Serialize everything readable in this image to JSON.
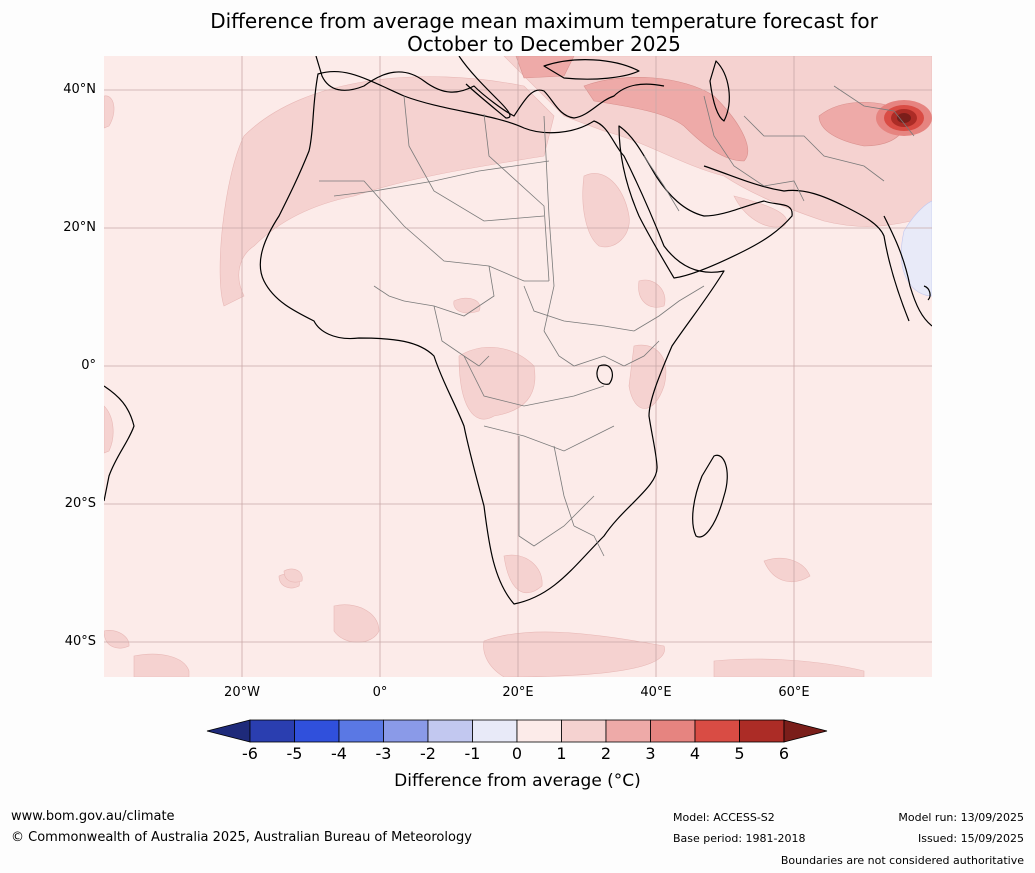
{
  "title_line1": "Difference from average mean maximum temperature forecast for",
  "title_line2": "October to December 2025",
  "lat_labels": [
    "40°N",
    "20°N",
    "0°",
    "20°S",
    "40°S"
  ],
  "lon_labels": [
    "20°W",
    "0°",
    "20°E",
    "40°E",
    "60°E"
  ],
  "colorbar": {
    "ticks": [
      "-6",
      "-5",
      "-4",
      "-3",
      "-2",
      "-1",
      "0",
      "1",
      "2",
      "3",
      "4",
      "5",
      "6"
    ],
    "colors": [
      "#1e2a7a",
      "#2a3eb0",
      "#3050dc",
      "#5a78e4",
      "#8a9ae8",
      "#c2c8f0",
      "#e8eaf8",
      "#fcebe9",
      "#f5d2d0",
      "#eeaaa8",
      "#e68480",
      "#d94c44",
      "#ac2c26",
      "#7a1e1a"
    ],
    "label": "Difference from average ($^\\circ$C)",
    "label_display": "Difference from average (°C)"
  },
  "footer": {
    "website": "www.bom.gov.au/climate",
    "copyright": "© Commonwealth of Australia 2025, Australian Bureau of Meteorology",
    "model": "Model: ACCESS-S2",
    "base_period": "Base period: 1981-2018",
    "model_run": "Model run: 13/09/2025",
    "issued": "Issued: 15/09/2025",
    "disclaimer": "Boundaries are not considered authoritative"
  }
}
